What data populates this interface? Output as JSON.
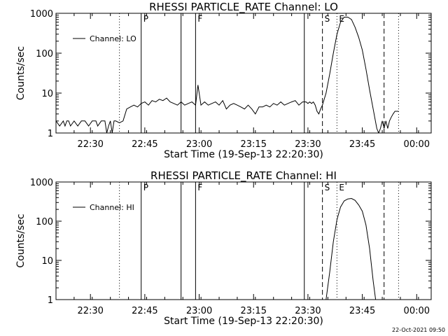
{
  "footer_date": "22-Oct-2021 09:50",
  "chart_data": [
    {
      "type": "line",
      "title": "RHESSI PARTICLE_RATE Channel: LO",
      "xlabel": "Start Time (19-Sep-13 22:20:30)",
      "ylabel": "Counts/sec",
      "yscale": "log",
      "ylim": [
        1,
        1000
      ],
      "xlim": [
        "22:20:30",
        "00:04:00"
      ],
      "x_ticks": [
        "22:30",
        "22:45",
        "23:00",
        "23:15",
        "23:30",
        "23:45",
        "00:00"
      ],
      "y_ticks": [
        "1",
        "10",
        "100",
        "1000"
      ],
      "legend": "top-left",
      "legend_entries": [
        "Channel: LO"
      ],
      "markers": [
        {
          "time": "22:38:00",
          "style": "dotted",
          "label": ""
        },
        {
          "time": "22:44:00",
          "style": "solid",
          "label": "P"
        },
        {
          "time": "22:55:00",
          "style": "solid",
          "label": ""
        },
        {
          "time": "22:59:00",
          "style": "solid",
          "label": "F"
        },
        {
          "time": "23:29:00",
          "style": "solid",
          "label": ""
        },
        {
          "time": "23:34:00",
          "style": "dashed",
          "label": "S"
        },
        {
          "time": "23:38:00",
          "style": "dotted",
          "label": "E"
        },
        {
          "time": "23:51:00",
          "style": "dashed",
          "label": ""
        },
        {
          "time": "23:55:00",
          "style": "dotted",
          "label": ""
        }
      ],
      "series": [
        {
          "name": "Channel: LO",
          "x": [
            "22:20:30",
            "22:21:30",
            "22:22:30",
            "22:23:00",
            "22:23:30",
            "22:24:00",
            "22:24:30",
            "22:25:30",
            "22:26:30",
            "22:27:30",
            "22:28:30",
            "22:29:30",
            "22:30:30",
            "22:31:30",
            "22:32:00",
            "22:33:00",
            "22:34:00",
            "22:34:30",
            "22:35:00",
            "22:35:30",
            "22:36:00",
            "22:36:30",
            "22:37:00",
            "22:38:00",
            "22:39:00",
            "22:40:00",
            "22:41:00",
            "22:42:00",
            "22:43:00",
            "22:44:00",
            "22:45:00",
            "22:46:00",
            "22:47:00",
            "22:48:00",
            "22:49:00",
            "22:50:00",
            "22:51:00",
            "22:52:00",
            "22:53:00",
            "22:54:00",
            "22:55:00",
            "22:56:00",
            "22:57:00",
            "22:58:00",
            "22:59:00",
            "22:59:40",
            "23:00:30",
            "23:01:30",
            "23:02:30",
            "23:03:30",
            "23:04:30",
            "23:05:30",
            "23:06:30",
            "23:07:30",
            "23:08:30",
            "23:09:30",
            "23:10:30",
            "23:11:30",
            "23:12:30",
            "23:13:30",
            "23:14:30",
            "23:15:30",
            "23:16:30",
            "23:17:30",
            "23:18:30",
            "23:19:30",
            "23:20:30",
            "23:21:30",
            "23:22:30",
            "23:23:30",
            "23:24:30",
            "23:25:30",
            "23:26:30",
            "23:27:30",
            "23:28:30",
            "23:29:30",
            "23:30:00",
            "23:30:30",
            "23:31:00",
            "23:31:30",
            "23:32:00",
            "23:32:30",
            "23:33:00",
            "23:33:30",
            "23:34:00",
            "23:35:00",
            "23:36:00",
            "23:37:00",
            "23:38:00",
            "23:39:00",
            "23:40:00",
            "23:41:00",
            "23:42:00",
            "23:43:00",
            "23:44:00",
            "23:45:00",
            "23:46:00",
            "23:47:00",
            "23:48:00",
            "23:49:00",
            "23:49:30",
            "23:50:00",
            "23:50:30",
            "23:51:00",
            "23:51:30",
            "23:52:00",
            "23:52:30",
            "23:53:00",
            "23:53:30",
            "23:54:00",
            "23:55:00"
          ],
          "y": [
            2,
            1.5,
            2,
            1.5,
            2,
            2,
            1.5,
            2,
            1.5,
            2,
            2,
            1.5,
            2,
            2,
            1.5,
            2,
            2,
            1,
            1.5,
            2,
            1,
            2,
            2,
            1.8,
            2,
            4,
            4.5,
            5,
            4.5,
            5.5,
            6,
            5,
            6.5,
            6,
            7,
            6.5,
            7.5,
            6,
            5.5,
            5,
            6,
            5,
            5.5,
            6,
            5,
            16,
            5,
            6,
            5,
            5.5,
            6,
            5,
            6.5,
            4,
            5,
            5.5,
            5,
            4.5,
            4,
            5,
            4,
            3,
            4.5,
            4.5,
            5,
            4.5,
            5.5,
            5,
            6,
            5,
            5.5,
            6,
            6.5,
            5,
            6,
            6,
            5.5,
            6,
            5.5,
            6,
            5,
            3.5,
            3,
            4,
            5,
            10,
            30,
            100,
            300,
            600,
            800,
            800,
            700,
            450,
            250,
            120,
            40,
            12,
            4,
            1.3,
            1,
            1.3,
            2,
            1.3,
            2,
            1.3,
            2,
            2.5,
            3,
            3.5,
            3.5
          ]
        }
      ]
    },
    {
      "type": "line",
      "title": "RHESSI PARTICLE_RATE Channel: HI",
      "xlabel": "Start Time (19-Sep-13 22:20:30)",
      "ylabel": "Counts/sec",
      "yscale": "log",
      "ylim": [
        1,
        1000
      ],
      "xlim": [
        "22:20:30",
        "00:04:00"
      ],
      "x_ticks": [
        "22:30",
        "22:45",
        "23:00",
        "23:15",
        "23:30",
        "23:45",
        "00:00"
      ],
      "y_ticks": [
        "1",
        "10",
        "100",
        "1000"
      ],
      "legend": "top-left",
      "legend_entries": [
        "Channel: HI"
      ],
      "markers": [
        {
          "time": "22:38:00",
          "style": "dotted",
          "label": ""
        },
        {
          "time": "22:44:00",
          "style": "solid",
          "label": "P"
        },
        {
          "time": "22:55:00",
          "style": "solid",
          "label": ""
        },
        {
          "time": "22:59:00",
          "style": "solid",
          "label": "F"
        },
        {
          "time": "23:29:00",
          "style": "solid",
          "label": ""
        },
        {
          "time": "23:34:00",
          "style": "dashed",
          "label": "S"
        },
        {
          "time": "23:38:00",
          "style": "dotted",
          "label": "E"
        },
        {
          "time": "23:51:00",
          "style": "dashed",
          "label": ""
        },
        {
          "time": "23:55:00",
          "style": "dotted",
          "label": ""
        }
      ],
      "series": [
        {
          "name": "Channel: HI",
          "x": [
            "23:35:00",
            "23:36:00",
            "23:37:00",
            "23:38:00",
            "23:39:00",
            "23:40:00",
            "23:41:00",
            "23:42:00",
            "23:43:00",
            "23:44:00",
            "23:45:00",
            "23:46:00",
            "23:47:00",
            "23:48:00",
            "23:48:40"
          ],
          "y": [
            1,
            5,
            30,
            110,
            230,
            330,
            370,
            380,
            340,
            260,
            180,
            80,
            20,
            3,
            1
          ]
        }
      ]
    }
  ]
}
